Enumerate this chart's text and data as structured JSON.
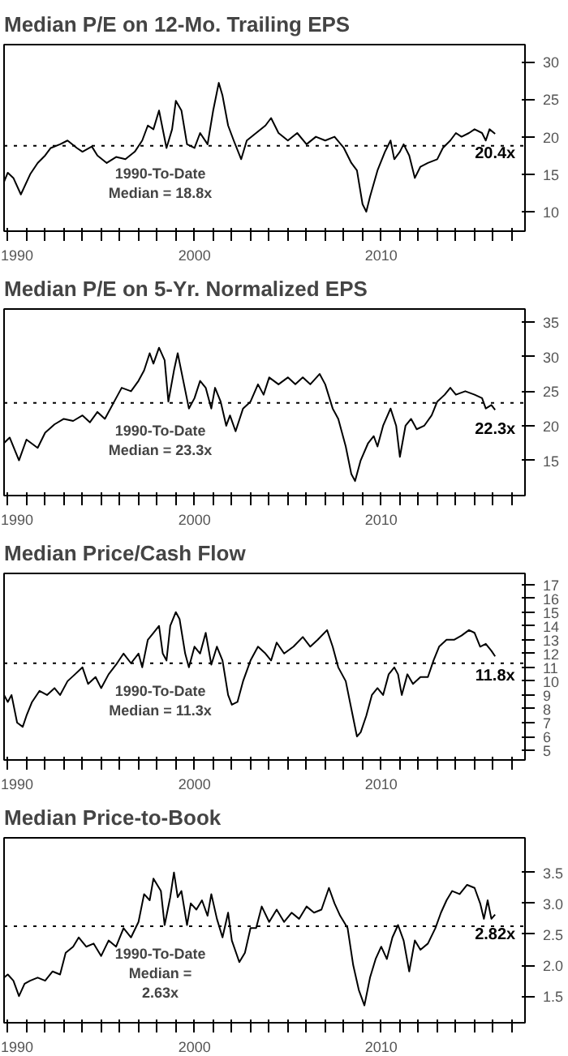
{
  "chart_data": [
    {
      "type": "line",
      "title": "Median P/E on 12-Mo. Trailing EPS",
      "color": "#000000",
      "xlim": [
        1989.8,
        2017.7
      ],
      "ylim": [
        7.4,
        32.3
      ],
      "yticks": [
        10,
        15,
        20,
        25,
        30
      ],
      "xticks": [
        1990,
        {
          "value": 1991,
          "label": null
        },
        {
          "value": 1992,
          "label": null
        },
        {
          "value": 1993,
          "label": null
        },
        {
          "value": 1994,
          "label": null
        },
        {
          "value": 1995,
          "label": null
        },
        {
          "value": 1996,
          "label": null
        },
        {
          "value": 1997,
          "label": null
        },
        {
          "value": 1998,
          "label": null
        },
        {
          "value": 1999,
          "label": null
        },
        2000,
        {
          "value": 2001,
          "label": null
        },
        {
          "value": 2002,
          "label": null
        },
        {
          "value": 2003,
          "label": null
        },
        {
          "value": 2004,
          "label": null
        },
        {
          "value": 2005,
          "label": null
        },
        {
          "value": 2006,
          "label": null
        },
        {
          "value": 2007,
          "label": null
        },
        {
          "value": 2008,
          "label": null
        },
        {
          "value": 2009,
          "label": null
        },
        2010,
        {
          "value": 2011,
          "label": null
        },
        {
          "value": 2012,
          "label": null
        },
        {
          "value": 2013,
          "label": null
        },
        {
          "value": 2014,
          "label": null
        },
        {
          "value": 2015,
          "label": null
        },
        {
          "value": 2016,
          "label": null
        },
        {
          "value": 2017,
          "label": null
        }
      ],
      "x": [
        1989.8,
        1990.0,
        1990.3,
        1990.7,
        1991.2,
        1991.6,
        1992.0,
        1992.3,
        1992.8,
        1993.2,
        1993.7,
        1994.0,
        1994.5,
        1994.8,
        1995.3,
        1995.8,
        1996.3,
        1996.8,
        1997.2,
        1997.5,
        1997.8,
        1998.1,
        1998.5,
        1998.8,
        1999.0,
        1999.3,
        1999.6,
        2000.0,
        2000.3,
        2000.7,
        2001.0,
        2001.3,
        2001.5,
        2001.8,
        2002.1,
        2002.5,
        2002.8,
        2003.3,
        2003.8,
        2004.1,
        2004.5,
        2005.0,
        2005.5,
        2006.0,
        2006.5,
        2007.0,
        2007.5,
        2008.0,
        2008.4,
        2008.7,
        2009.0,
        2009.2,
        2009.4,
        2009.8,
        2010.2,
        2010.5,
        2010.7,
        2011.0,
        2011.2,
        2011.5,
        2011.8,
        2012.1,
        2012.5,
        2013.0,
        2013.3,
        2013.7,
        2014.0,
        2014.3,
        2014.7,
        2015.0,
        2015.4,
        2015.6,
        2015.8,
        2016.1
      ],
      "values": [
        14,
        15.2,
        14.5,
        12.3,
        15,
        16.5,
        17.5,
        18.5,
        19,
        19.5,
        18.5,
        18,
        18.7,
        17.5,
        16.5,
        17.3,
        17,
        18,
        19.5,
        21.5,
        21,
        23.5,
        18.5,
        21,
        24.8,
        23.5,
        19,
        18.5,
        20.5,
        19,
        23.5,
        27.2,
        25.5,
        21.5,
        19.5,
        17,
        19.5,
        20.5,
        21.5,
        22.5,
        20.5,
        19.5,
        20.5,
        19,
        20,
        19.5,
        20,
        18.5,
        16.5,
        15.5,
        11,
        10,
        12,
        15.5,
        18,
        19.5,
        17,
        18,
        19,
        17.5,
        14.5,
        16,
        16.5,
        17,
        18.5,
        19.5,
        20.5,
        20,
        20.5,
        21,
        20.5,
        19.5,
        21,
        20.4
      ],
      "ref_lines": [
        {
          "axis": "y",
          "value": 18.8,
          "label": "1990-To-Date\nMedian = 18.8x",
          "line_style": "dotted"
        }
      ],
      "annotations": [
        "20.4x"
      ]
    },
    {
      "type": "line",
      "title": "Median P/E on 5-Yr. Normalized EPS",
      "color": "#000000",
      "xlim": [
        1989.8,
        2017.7
      ],
      "ylim": [
        9.9,
        36.9
      ],
      "yticks": [
        15,
        20,
        25,
        30,
        35
      ],
      "xticks": [
        1990,
        {
          "value": 1991,
          "label": null
        },
        {
          "value": 1992,
          "label": null
        },
        {
          "value": 1993,
          "label": null
        },
        {
          "value": 1994,
          "label": null
        },
        {
          "value": 1995,
          "label": null
        },
        {
          "value": 1996,
          "label": null
        },
        {
          "value": 1997,
          "label": null
        },
        {
          "value": 1998,
          "label": null
        },
        {
          "value": 1999,
          "label": null
        },
        2000,
        {
          "value": 2001,
          "label": null
        },
        {
          "value": 2002,
          "label": null
        },
        {
          "value": 2003,
          "label": null
        },
        {
          "value": 2004,
          "label": null
        },
        {
          "value": 2005,
          "label": null
        },
        {
          "value": 2006,
          "label": null
        },
        {
          "value": 2007,
          "label": null
        },
        {
          "value": 2008,
          "label": null
        },
        {
          "value": 2009,
          "label": null
        },
        2010,
        {
          "value": 2011,
          "label": null
        },
        {
          "value": 2012,
          "label": null
        },
        {
          "value": 2013,
          "label": null
        },
        {
          "value": 2014,
          "label": null
        },
        {
          "value": 2015,
          "label": null
        },
        {
          "value": 2016,
          "label": null
        },
        {
          "value": 2017,
          "label": null
        }
      ],
      "x": [
        1989.8,
        1990.1,
        1990.6,
        1991.0,
        1991.6,
        1992.0,
        1992.5,
        1993.0,
        1993.5,
        1994.0,
        1994.4,
        1994.8,
        1995.2,
        1995.7,
        1996.1,
        1996.6,
        1997.0,
        1997.3,
        1997.6,
        1997.8,
        1998.1,
        1998.4,
        1998.6,
        1998.9,
        1999.1,
        1999.4,
        1999.7,
        2000.0,
        2000.3,
        2000.6,
        2000.9,
        2001.1,
        2001.4,
        2001.7,
        2001.9,
        2002.2,
        2002.6,
        2003.0,
        2003.4,
        2003.7,
        2004.0,
        2004.5,
        2005.0,
        2005.4,
        2005.8,
        2006.2,
        2006.7,
        2007.0,
        2007.4,
        2007.7,
        2008.1,
        2008.4,
        2008.6,
        2008.9,
        2009.3,
        2009.6,
        2009.8,
        2010.1,
        2010.5,
        2010.8,
        2011.0,
        2011.3,
        2011.6,
        2011.9,
        2012.3,
        2012.7,
        2013.0,
        2013.4,
        2013.7,
        2014.0,
        2014.5,
        2015.0,
        2015.4,
        2015.6,
        2015.9,
        2016.1
      ],
      "values": [
        17.5,
        18.3,
        15,
        18,
        16.8,
        19,
        20.2,
        21,
        20.7,
        21.5,
        20.5,
        22,
        21,
        23.5,
        25.5,
        25,
        26.5,
        28,
        30.5,
        29,
        31.3,
        29.5,
        23.5,
        28,
        30.5,
        26.5,
        22.5,
        24,
        26.5,
        25.5,
        22.5,
        25.5,
        23.5,
        20,
        21.5,
        19.2,
        22.5,
        23.5,
        26,
        24.5,
        27,
        26,
        27,
        26,
        27,
        26,
        27.5,
        26,
        22.5,
        21,
        17,
        13,
        12,
        15,
        17.5,
        18.5,
        17,
        20,
        22.5,
        20,
        15.5,
        20,
        21,
        19.5,
        20,
        21.5,
        23.5,
        24.5,
        25.5,
        24.5,
        25,
        24.5,
        24,
        22.5,
        23,
        22.3
      ],
      "ref_lines": [
        {
          "axis": "y",
          "value": 23.3,
          "label": "1990-To-Date\nMedian = 23.3x",
          "line_style": "dotted"
        }
      ],
      "annotations": [
        "22.3x"
      ]
    },
    {
      "type": "line",
      "title": "Median Price/Cash Flow",
      "color": "#000000",
      "xlim": [
        1989.8,
        2017.7
      ],
      "ylim": [
        4.3,
        17.8
      ],
      "yticks": [
        5,
        6,
        7,
        8,
        9,
        10,
        11,
        12,
        13,
        14,
        15,
        16,
        17
      ],
      "xticks": [
        1990,
        {
          "value": 1991,
          "label": null
        },
        {
          "value": 1992,
          "label": null
        },
        {
          "value": 1993,
          "label": null
        },
        {
          "value": 1994,
          "label": null
        },
        {
          "value": 1995,
          "label": null
        },
        {
          "value": 1996,
          "label": null
        },
        {
          "value": 1997,
          "label": null
        },
        {
          "value": 1998,
          "label": null
        },
        {
          "value": 1999,
          "label": null
        },
        2000,
        {
          "value": 2001,
          "label": null
        },
        {
          "value": 2002,
          "label": null
        },
        {
          "value": 2003,
          "label": null
        },
        {
          "value": 2004,
          "label": null
        },
        {
          "value": 2005,
          "label": null
        },
        {
          "value": 2006,
          "label": null
        },
        {
          "value": 2007,
          "label": null
        },
        {
          "value": 2008,
          "label": null
        },
        {
          "value": 2009,
          "label": null
        },
        2010,
        {
          "value": 2011,
          "label": null
        },
        {
          "value": 2012,
          "label": null
        },
        {
          "value": 2013,
          "label": null
        },
        {
          "value": 2014,
          "label": null
        },
        {
          "value": 2015,
          "label": null
        },
        {
          "value": 2016,
          "label": null
        },
        {
          "value": 2017,
          "label": null
        }
      ],
      "x": [
        1989.8,
        1990.0,
        1990.2,
        1990.5,
        1990.8,
        1991.0,
        1991.3,
        1991.7,
        1992.1,
        1992.5,
        1992.8,
        1993.2,
        1993.6,
        1994.0,
        1994.3,
        1994.7,
        1995.0,
        1995.4,
        1995.8,
        1996.2,
        1996.6,
        1997.0,
        1997.2,
        1997.5,
        1997.8,
        1998.1,
        1998.3,
        1998.5,
        1998.7,
        1999.0,
        1999.2,
        1999.5,
        1999.7,
        2000.0,
        2000.3,
        2000.6,
        2000.9,
        2001.2,
        2001.5,
        2001.8,
        2002.0,
        2002.3,
        2002.6,
        2003.0,
        2003.4,
        2003.8,
        2004.1,
        2004.4,
        2004.8,
        2005.3,
        2005.8,
        2006.2,
        2006.6,
        2007.1,
        2007.4,
        2007.7,
        2008.1,
        2008.4,
        2008.7,
        2008.9,
        2009.2,
        2009.5,
        2009.8,
        2010.1,
        2010.4,
        2010.7,
        2010.9,
        2011.1,
        2011.4,
        2011.7,
        2012.1,
        2012.5,
        2012.8,
        2013.1,
        2013.5,
        2013.9,
        2014.3,
        2014.7,
        2015.0,
        2015.3,
        2015.6,
        2015.9,
        2016.1
      ],
      "values": [
        9,
        8.5,
        9,
        7,
        6.7,
        7.5,
        8.5,
        9.3,
        9,
        9.5,
        9,
        10,
        10.5,
        11,
        9.8,
        10.3,
        9.5,
        10.5,
        11.2,
        12,
        11.3,
        12,
        11,
        13,
        13.5,
        14,
        12,
        11.5,
        14,
        15,
        14.5,
        12,
        11,
        12.5,
        12,
        13.5,
        11.2,
        12.5,
        11.5,
        9,
        8.3,
        8.5,
        10,
        11.5,
        12.5,
        12,
        11.5,
        12.8,
        12,
        12.5,
        13.2,
        12.5,
        13,
        13.7,
        12.5,
        11,
        10,
        8,
        6,
        6.3,
        7.5,
        9,
        9.5,
        9,
        10.5,
        11,
        10.5,
        9,
        10.5,
        9.8,
        10.3,
        10.3,
        11.5,
        12.5,
        13,
        13,
        13.3,
        13.7,
        13.5,
        12.5,
        12.7,
        12.2,
        11.8
      ],
      "ref_lines": [
        {
          "axis": "y",
          "value": 11.3,
          "label": "1990-To-Date\nMedian = 11.3x",
          "line_style": "dotted"
        }
      ],
      "annotations": [
        "11.8x"
      ]
    },
    {
      "type": "line",
      "title": "Median Price-to-Book",
      "color": "#000000",
      "xlim": [
        1989.8,
        2017.7
      ],
      "ylim": [
        1.07,
        4.06
      ],
      "yticks": [
        1.5,
        {
          "value": 2,
          "label": "2.0"
        },
        2.5,
        {
          "value": 3,
          "label": "3.0"
        },
        3.5
      ],
      "xticks": [
        1990,
        {
          "value": 1991,
          "label": null
        },
        {
          "value": 1992,
          "label": null
        },
        {
          "value": 1993,
          "label": null
        },
        {
          "value": 1994,
          "label": null
        },
        {
          "value": 1995,
          "label": null
        },
        {
          "value": 1996,
          "label": null
        },
        {
          "value": 1997,
          "label": null
        },
        {
          "value": 1998,
          "label": null
        },
        {
          "value": 1999,
          "label": null
        },
        2000,
        {
          "value": 2001,
          "label": null
        },
        {
          "value": 2002,
          "label": null
        },
        {
          "value": 2003,
          "label": null
        },
        {
          "value": 2004,
          "label": null
        },
        {
          "value": 2005,
          "label": null
        },
        {
          "value": 2006,
          "label": null
        },
        {
          "value": 2007,
          "label": null
        },
        {
          "value": 2008,
          "label": null
        },
        {
          "value": 2009,
          "label": null
        },
        2010,
        {
          "value": 2011,
          "label": null
        },
        {
          "value": 2012,
          "label": null
        },
        {
          "value": 2013,
          "label": null
        },
        {
          "value": 2014,
          "label": null
        },
        {
          "value": 2015,
          "label": null
        },
        {
          "value": 2016,
          "label": null
        },
        {
          "value": 2017,
          "label": null
        }
      ],
      "x": [
        1989.8,
        1990.0,
        1990.3,
        1990.6,
        1990.9,
        1991.2,
        1991.6,
        1992.0,
        1992.4,
        1992.8,
        1993.1,
        1993.5,
        1993.8,
        1994.2,
        1994.6,
        1995.0,
        1995.4,
        1995.8,
        1996.2,
        1996.6,
        1997.0,
        1997.3,
        1997.6,
        1997.8,
        1998.2,
        1998.4,
        1998.7,
        1998.9,
        1999.1,
        1999.3,
        1999.6,
        1999.8,
        2000.1,
        2000.4,
        2000.7,
        2000.9,
        2001.2,
        2001.5,
        2001.8,
        2002.0,
        2002.4,
        2002.7,
        2003.0,
        2003.3,
        2003.6,
        2004.0,
        2004.4,
        2004.8,
        2005.2,
        2005.6,
        2006.0,
        2006.4,
        2006.8,
        2007.2,
        2007.5,
        2007.8,
        2008.2,
        2008.5,
        2008.8,
        2009.1,
        2009.4,
        2009.7,
        2010.0,
        2010.3,
        2010.6,
        2010.9,
        2011.2,
        2011.5,
        2011.8,
        2012.1,
        2012.5,
        2012.9,
        2013.2,
        2013.5,
        2013.8,
        2014.2,
        2014.6,
        2015.0,
        2015.3,
        2015.5,
        2015.7,
        2015.9,
        2016.1
      ],
      "values": [
        1.8,
        1.85,
        1.75,
        1.5,
        1.7,
        1.75,
        1.8,
        1.75,
        1.9,
        1.85,
        2.2,
        2.3,
        2.45,
        2.3,
        2.35,
        2.15,
        2.4,
        2.3,
        2.6,
        2.45,
        2.7,
        3.15,
        3.05,
        3.4,
        3.2,
        2.65,
        3.1,
        3.5,
        3.1,
        3.2,
        2.65,
        3,
        2.9,
        3.05,
        2.8,
        3.15,
        2.75,
        2.45,
        2.85,
        2.4,
        2.05,
        2.2,
        2.6,
        2.6,
        2.95,
        2.7,
        2.9,
        2.7,
        2.85,
        2.75,
        2.95,
        2.85,
        2.9,
        3.25,
        3,
        2.8,
        2.6,
        2,
        1.6,
        1.35,
        1.8,
        2.1,
        2.3,
        2.1,
        2.45,
        2.65,
        2.4,
        1.9,
        2.4,
        2.25,
        2.35,
        2.6,
        2.85,
        3.05,
        3.2,
        3.15,
        3.3,
        3.25,
        3,
        2.75,
        3.05,
        2.75,
        2.82
      ],
      "ref_lines": [
        {
          "axis": "y",
          "value": 2.63,
          "label": "1990-To-Date\nMedian =\n2.63x",
          "line_style": "dotted"
        }
      ],
      "annotations": [
        "2.82x"
      ]
    }
  ]
}
